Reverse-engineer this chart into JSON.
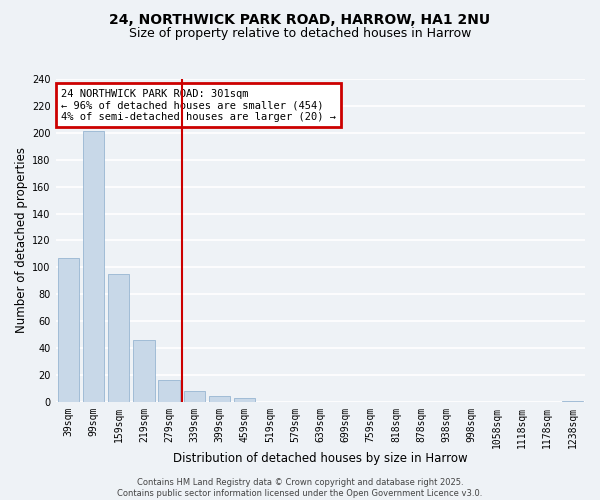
{
  "title1": "24, NORTHWICK PARK ROAD, HARROW, HA1 2NU",
  "title2": "Size of property relative to detached houses in Harrow",
  "xlabel": "Distribution of detached houses by size in Harrow",
  "ylabel": "Number of detached properties",
  "bar_values": [
    107,
    201,
    95,
    46,
    16,
    8,
    4,
    3,
    0,
    0,
    0,
    0,
    0,
    0,
    0,
    0,
    0,
    0,
    0,
    0,
    1
  ],
  "bar_labels": [
    "39sqm",
    "99sqm",
    "159sqm",
    "219sqm",
    "279sqm",
    "339sqm",
    "399sqm",
    "459sqm",
    "519sqm",
    "579sqm",
    "639sqm",
    "699sqm",
    "759sqm",
    "818sqm",
    "878sqm",
    "938sqm",
    "998sqm",
    "1058sqm",
    "1118sqm",
    "1178sqm",
    "1238sqm"
  ],
  "bar_color": "#c8d8e8",
  "bar_edge_color": "#8aaccc",
  "ylim": [
    0,
    240
  ],
  "yticks": [
    0,
    20,
    40,
    60,
    80,
    100,
    120,
    140,
    160,
    180,
    200,
    220,
    240
  ],
  "vline_x": 4.5,
  "vline_color": "#cc0000",
  "annotation_text": "24 NORTHWICK PARK ROAD: 301sqm\n← 96% of detached houses are smaller (454)\n4% of semi-detached houses are larger (20) →",
  "annotation_box_color": "#cc0000",
  "footer1": "Contains HM Land Registry data © Crown copyright and database right 2025.",
  "footer2": "Contains public sector information licensed under the Open Government Licence v3.0.",
  "background_color": "#eef2f6",
  "grid_color": "#ffffff",
  "title_fontsize": 10,
  "subtitle_fontsize": 9,
  "axis_label_fontsize": 8.5,
  "tick_fontsize": 7,
  "annotation_fontsize": 7.5
}
